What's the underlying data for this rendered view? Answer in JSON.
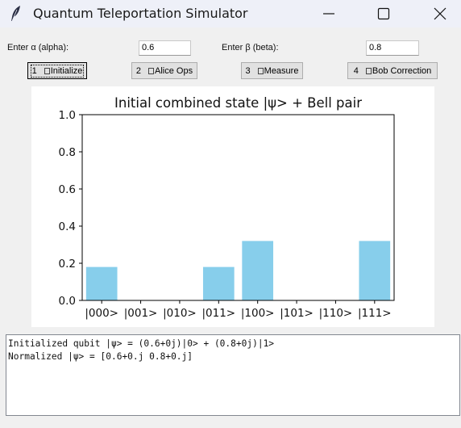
{
  "window": {
    "title": "Quantum Teleportation Simulator"
  },
  "inputs": {
    "alpha": {
      "label": "Enter α (alpha):",
      "value": "0.6"
    },
    "beta": {
      "label": "Enter β (beta):",
      "value": "0.8"
    }
  },
  "buttons": [
    {
      "label": "1  □Initialize"
    },
    {
      "label": "2  □Alice Ops"
    },
    {
      "label": "3  □Measure"
    },
    {
      "label": "4  □Bob Correction"
    }
  ],
  "button_parts": [
    {
      "num": "1",
      "text": "Initialize"
    },
    {
      "num": "2",
      "text": "Alice Ops"
    },
    {
      "num": "3",
      "text": "Measure"
    },
    {
      "num": "4",
      "text": "Bob Correction"
    }
  ],
  "chart_data": {
    "type": "bar",
    "title": "Initial combined state |ψ> + Bell pair",
    "categories": [
      "|000>",
      "|001>",
      "|010>",
      "|011>",
      "|100>",
      "|101>",
      "|110>",
      "|111>"
    ],
    "values": [
      0.18,
      0,
      0,
      0.18,
      0.32,
      0,
      0,
      0.32
    ],
    "ylim": [
      0,
      1.0
    ],
    "yticks": [
      "0.0",
      "0.2",
      "0.4",
      "0.6",
      "0.8",
      "1.0"
    ],
    "xlabel": "",
    "ylabel": "",
    "bar_color": "#87ceeb",
    "grid": false
  },
  "output": {
    "lines": [
      "Initialized qubit |ψ> = (0.6+0j)|0> + (0.8+0j)|1>",
      "Normalized |ψ> = [0.6+0.j 0.8+0.j]"
    ]
  }
}
